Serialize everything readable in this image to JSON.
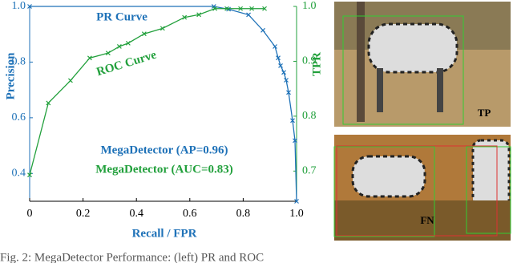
{
  "chart_data": {
    "type": "line",
    "xlabel": "Recall / FPR",
    "ylabel": "Precision",
    "y2label": "TPR",
    "xlim": [
      0,
      1.0
    ],
    "xticks": [
      0,
      0.2,
      0.4,
      0.6,
      0.8,
      {
        "value": 1.0,
        "label": "1.0"
      }
    ],
    "ylim": [
      0.3,
      1.0
    ],
    "yticks": [
      0.4,
      0.6,
      0.8,
      {
        "value": 1.0,
        "label": "1.0"
      }
    ],
    "y2lim": [
      0.645,
      1.0
    ],
    "y2ticks": [
      0.7,
      0.8,
      0.9,
      {
        "value": 1.0,
        "label": "1.0"
      }
    ],
    "series": [
      {
        "name": "PR Curve",
        "color": "#1f72b8",
        "axis": "y",
        "x": [
          0,
          0.69,
          0.745,
          0.82,
          0.874,
          0.919,
          0.931,
          0.94,
          0.952,
          0.961,
          0.97,
          0.985,
          0.994,
          1.0
        ],
        "values": [
          1.0,
          1.0,
          0.99,
          0.97,
          0.914,
          0.856,
          0.815,
          0.787,
          0.763,
          0.735,
          0.691,
          0.59,
          0.518,
          0.3
        ]
      },
      {
        "name": "ROC Curve",
        "color": "#22a03c",
        "axis": "y2",
        "x": [
          0,
          0.07,
          0.153,
          0.225,
          0.294,
          0.336,
          0.369,
          0.429,
          0.498,
          0.58,
          0.634,
          0.694,
          0.739,
          0.79,
          0.832,
          0.88
        ],
        "values": [
          0.693,
          0.824,
          0.865,
          0.906,
          0.915,
          0.927,
          0.933,
          0.95,
          0.96,
          0.98,
          0.985,
          0.996,
          0.996,
          0.996,
          0.996,
          0.996
        ]
      }
    ],
    "annotations": [
      "MegaDetector (AP=0.96)",
      "MegaDetector (AUC=0.83)"
    ]
  },
  "images": [
    {
      "label": "TP"
    },
    {
      "label": "FN"
    }
  ],
  "caption": "Fig. 2: MegaDetector Performance: (left) PR and ROC"
}
